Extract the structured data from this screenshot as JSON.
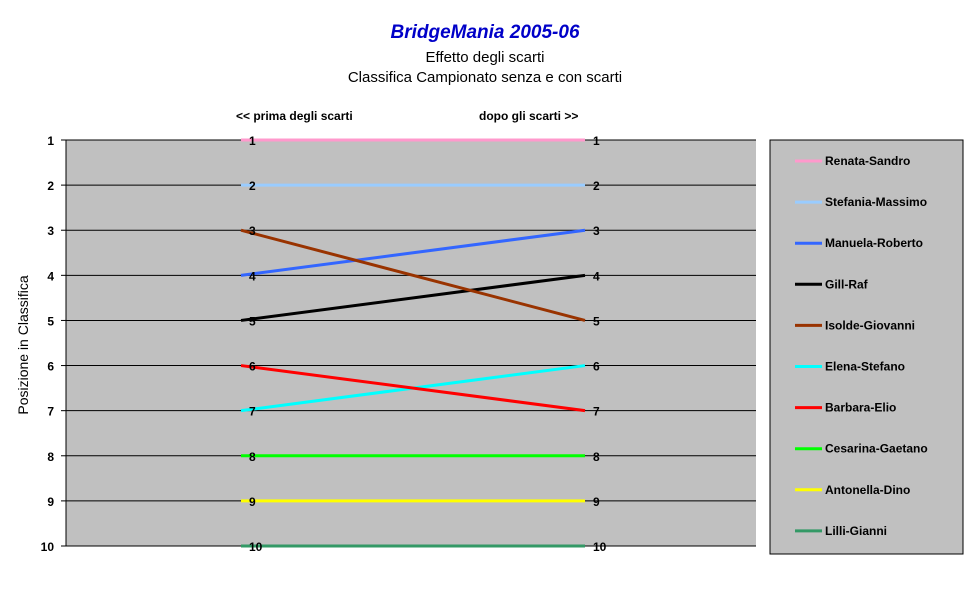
{
  "chart_data": {
    "type": "line",
    "title": "BridgeMania 2005-06",
    "subtitle": [
      "Effetto degli scarti",
      "Classifica Campionato senza e con scarti"
    ],
    "ylabel": "Posizione in Classifica",
    "xlabel": "",
    "x_annotations": [
      "<< prima degli scarti",
      "dopo gli scarti >>"
    ],
    "ylim": [
      1,
      10
    ],
    "y_inverted": true,
    "yticks": [
      1,
      2,
      3,
      4,
      5,
      6,
      7,
      8,
      9,
      10
    ],
    "grid": true,
    "legend_position": "right",
    "background": "#c0c0c0",
    "series": [
      {
        "name": "Renata-Sandro",
        "values": [
          1,
          1
        ],
        "color": "#ff99cc"
      },
      {
        "name": "Stefania-Massimo",
        "values": [
          2,
          2
        ],
        "color": "#99ccff"
      },
      {
        "name": "Manuela-Roberto",
        "values": [
          4,
          3
        ],
        "color": "#3366ff"
      },
      {
        "name": "Gill-Raf",
        "values": [
          5,
          4
        ],
        "color": "#000000"
      },
      {
        "name": "Isolde-Giovanni",
        "values": [
          3,
          5
        ],
        "color": "#993300"
      },
      {
        "name": "Elena-Stefano",
        "values": [
          7,
          6
        ],
        "color": "#00ffff"
      },
      {
        "name": "Barbara-Elio",
        "values": [
          6,
          7
        ],
        "color": "#ff0000"
      },
      {
        "name": "Cesarina-Gaetano",
        "values": [
          8,
          8
        ],
        "color": "#00ff00"
      },
      {
        "name": "Antonella-Dino",
        "values": [
          9,
          9
        ],
        "color": "#ffff00"
      },
      {
        "name": "Lilli-Gianni",
        "values": [
          10,
          10
        ],
        "color": "#339966"
      }
    ]
  }
}
